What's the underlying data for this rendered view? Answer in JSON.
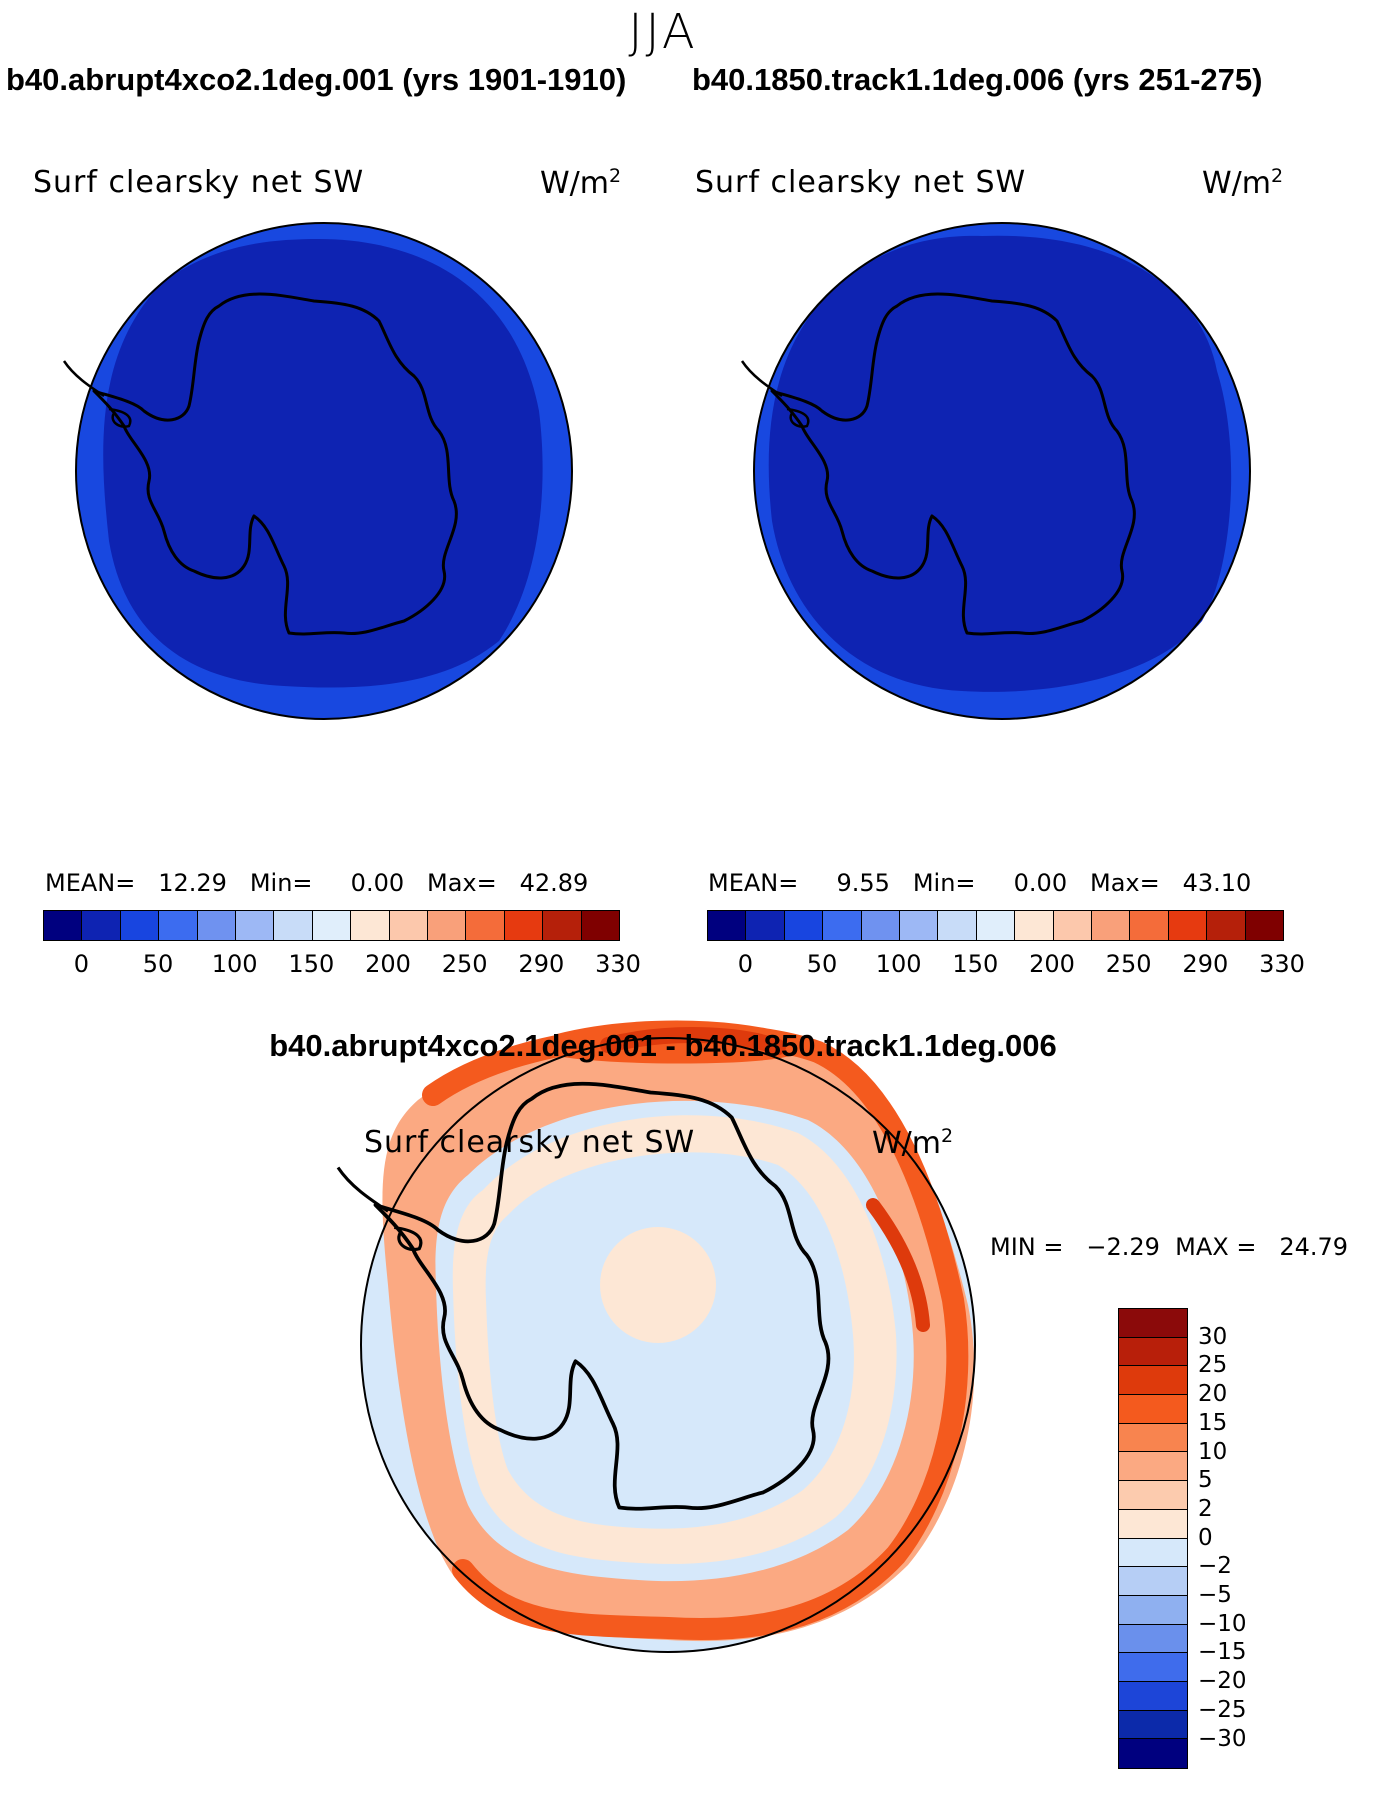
{
  "season": "JJA",
  "panels": [
    {
      "case_title": "b40.abrupt4xco2.1deg.001 (yrs 1901-1910)",
      "variable": "Surf clearsky net SW",
      "units": "W/m",
      "units_sup": "2",
      "stats": "MEAN=   12.29   Min=     0.00   Max=   42.89"
    },
    {
      "case_title": "b40.1850.track1.1deg.006 (yrs 251-275)",
      "variable": "Surf clearsky net SW",
      "units": "W/m",
      "units_sup": "2",
      "stats": "MEAN=     9.55   Min=     0.00   Max=   43.10"
    }
  ],
  "abs_colorbar": {
    "colors": [
      "#00007f",
      "#0e23b2",
      "#1845e0",
      "#3c6cf0",
      "#6f92f0",
      "#9db8f5",
      "#c8dcf8",
      "#e0eefb",
      "#fde7d5",
      "#fcc8ac",
      "#f9a07a",
      "#f46c3a",
      "#e63a10",
      "#b5200a",
      "#7f0000"
    ],
    "tick_labels": [
      "0",
      "50",
      "100",
      "150",
      "200",
      "250",
      "290",
      "330"
    ]
  },
  "diff_panel": {
    "title": "b40.abrupt4xco2.1deg.001 - b40.1850.track1.1deg.006",
    "variable": "Surf clearsky net SW",
    "units": "W/m",
    "units_sup": "2",
    "stats": "MIN =   −2.29  MAX =   24.79"
  },
  "diff_colorbar": {
    "colors": [
      "#8b0a0a",
      "#b81f0a",
      "#de3a0c",
      "#f45a1e",
      "#f8844f",
      "#fba982",
      "#fccbae",
      "#fde7d5",
      "#d6e8fa",
      "#b6cef5",
      "#8fb0f0",
      "#6a90ec",
      "#3f6cec",
      "#1d45d8",
      "#0c2aaa",
      "#00007f"
    ],
    "tick_labels": [
      "30",
      "25",
      "20",
      "15",
      "10",
      "5",
      "2",
      "0",
      "−2",
      "−5",
      "−10",
      "−15",
      "−20",
      "−25",
      "−30"
    ]
  },
  "map_colors": {
    "abs_outer_ring": "#1848e0",
    "abs_interior": "#0e23b2",
    "diff_background": "#d6e8fa",
    "diff_light": "#fde7d5",
    "diff_salmon": "#fba982",
    "diff_orange": "#f45a1e",
    "diff_red": "#de3a0c"
  }
}
